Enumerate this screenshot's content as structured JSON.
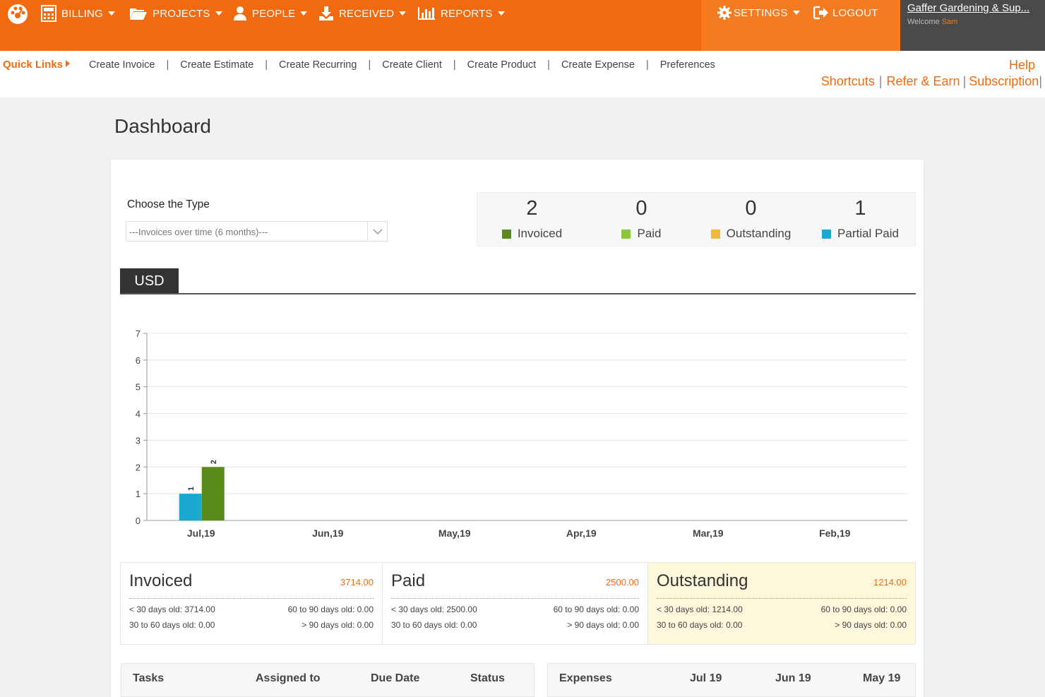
{
  "nav": {
    "billing": "BILLING",
    "projects": "PROJECTS",
    "people": "PEOPLE",
    "received": "RECEIVED",
    "reports": "REPORTS",
    "settings": "SETTINGS",
    "logout": "LOGOUT"
  },
  "account": {
    "company": "Gaffer Gardening & Sup...",
    "welcome": "Welcome",
    "user": "Sam"
  },
  "quick_links": {
    "title": "Quick Links",
    "items": [
      "Create Invoice",
      "Create Estimate",
      "Create Recurring",
      "Create Client",
      "Create Product",
      "Create Expense",
      "Preferences"
    ],
    "help": "Help",
    "right_links": [
      "Shortcuts",
      "Refer & Earn",
      "Subscription"
    ]
  },
  "page": {
    "title": "Dashboard"
  },
  "type_chooser": {
    "label": "Choose the Type",
    "selected": "---Invoices over time (6 months)---"
  },
  "summary": [
    {
      "count": "2",
      "label": "Invoiced",
      "color": "#5a8a1a"
    },
    {
      "count": "0",
      "label": "Paid",
      "color": "#8cc63f"
    },
    {
      "count": "0",
      "label": "Outstanding",
      "color": "#f0b83c"
    },
    {
      "count": "1",
      "label": "Partial Paid",
      "color": "#1ba9d2"
    }
  ],
  "currency_tab": "USD",
  "chart_data": {
    "type": "bar",
    "categories": [
      "Jul,19",
      "Jun,19",
      "May,19",
      "Apr,19",
      "Mar,19",
      "Feb,19"
    ],
    "series": [
      {
        "name": "Partial Paid",
        "color": "#1ba9d2",
        "values": [
          1,
          0,
          0,
          0,
          0,
          0
        ]
      },
      {
        "name": "Invoiced",
        "color": "#5a8a1a",
        "values": [
          2,
          0,
          0,
          0,
          0,
          0
        ]
      }
    ],
    "ylim": [
      0,
      7
    ],
    "yticks": [
      0,
      1,
      2,
      3,
      4,
      5,
      6,
      7
    ],
    "data_labels": true
  },
  "aging": [
    {
      "title": "Invoiced",
      "total": "3714.00",
      "lt30": "< 30 days old: 3714.00",
      "d30_60": "30 to 60 days old: 0.00",
      "d60_90": "60 to 90 days old: 0.00",
      "gt90": "> 90 days old: 0.00",
      "highlight": false
    },
    {
      "title": "Paid",
      "total": "2500.00",
      "lt30": "< 30 days old: 2500.00",
      "d30_60": "30 to 60 days old: 0.00",
      "d60_90": "60 to 90 days old: 0.00",
      "gt90": "> 90 days old: 0.00",
      "highlight": false
    },
    {
      "title": "Outstanding",
      "total": "1214.00",
      "lt30": "< 30 days old: 1214.00",
      "d30_60": "30 to 60 days old: 0.00",
      "d60_90": "60 to 90 days old: 0.00",
      "gt90": "> 90 days old: 0.00",
      "highlight": true
    }
  ],
  "tasks_table": {
    "headers": [
      "Tasks",
      "Assigned to",
      "Due Date",
      "Status"
    ]
  },
  "expenses_table": {
    "headers": [
      "Expenses",
      "Jul 19",
      "Jun 19",
      "May 19"
    ]
  },
  "colors": {
    "brand": "#f26a0f",
    "outstanding_bg": "#fdf8dc"
  }
}
